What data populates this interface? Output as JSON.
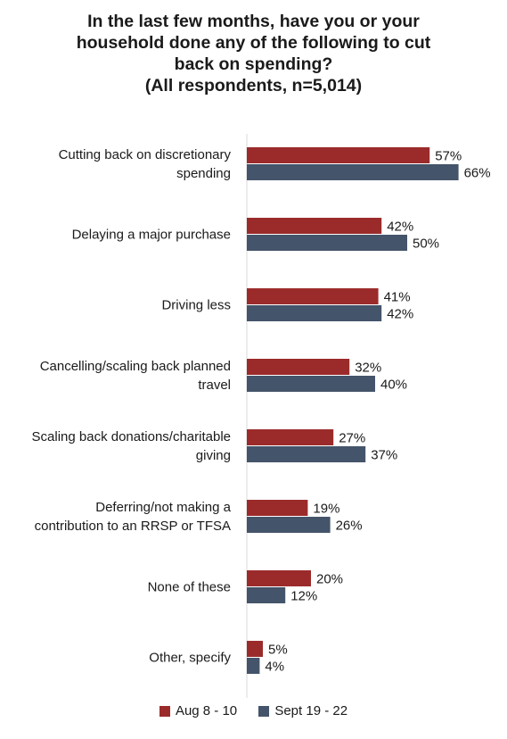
{
  "chart_data": {
    "type": "bar",
    "orientation": "horizontal",
    "title_lines": [
      "In the last few months, have you or your",
      "household done any of the following to cut",
      "back on spending?",
      "(All respondents, n=5,014)"
    ],
    "categories": [
      [
        "Cutting back on discretionary",
        "spending"
      ],
      [
        "Delaying a major purchase"
      ],
      [
        "Driving less"
      ],
      [
        "Cancelling/scaling back planned",
        "travel"
      ],
      [
        "Scaling back donations/charitable",
        "giving"
      ],
      [
        "Deferring/not making a",
        "contribution to an RRSP or TFSA"
      ],
      [
        "None of these"
      ],
      [
        "Other, specify"
      ]
    ],
    "series": [
      {
        "name": "Aug 8 - 10",
        "color": "#9B2B2B",
        "values": [
          57,
          42,
          41,
          32,
          27,
          19,
          20,
          5
        ]
      },
      {
        "name": "Sept 19 - 22",
        "color": "#44546A",
        "values": [
          66,
          50,
          42,
          40,
          37,
          26,
          12,
          4
        ]
      }
    ],
    "value_suffix": "%",
    "xlim": [
      0,
      100
    ],
    "grid": false,
    "legend_position": "bottom"
  }
}
